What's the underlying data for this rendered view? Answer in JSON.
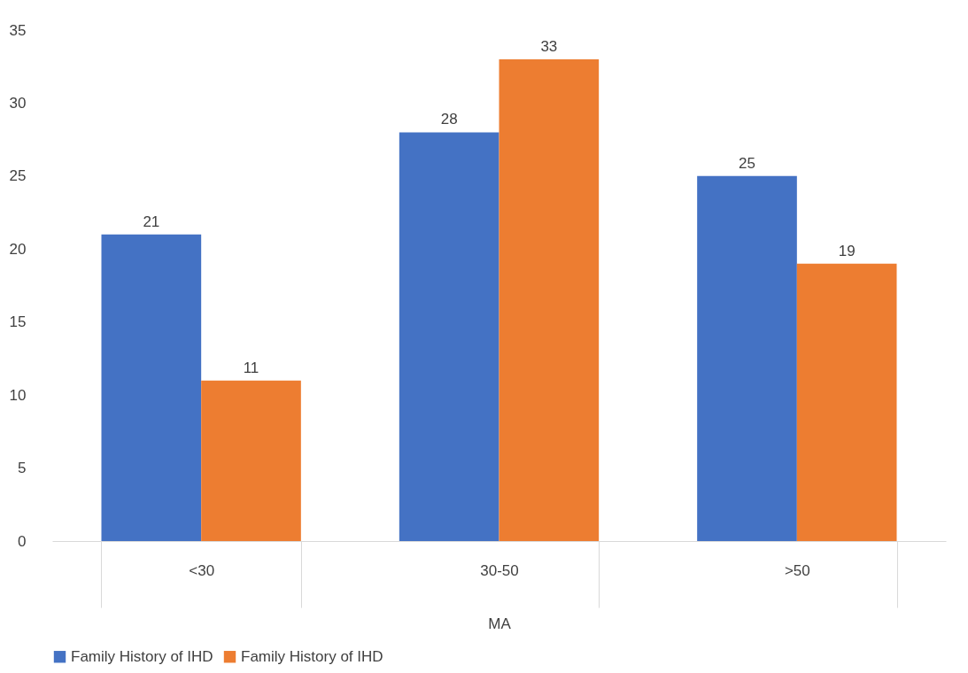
{
  "chart_data": {
    "type": "bar",
    "xlabel": "MA",
    "categories": [
      "<30",
      "30-50",
      ">50"
    ],
    "series": [
      {
        "name": "Family History of IHD",
        "color": "#4472c4",
        "values": [
          21,
          28,
          25
        ]
      },
      {
        "name": "Family History of IHD",
        "color": "#ed7d31",
        "values": [
          11,
          33,
          19
        ]
      }
    ],
    "ylim": [
      0,
      35
    ],
    "yticks": [
      0,
      5,
      10,
      15,
      20,
      25,
      30,
      35
    ],
    "grid": false,
    "legend": "bottom",
    "data_labels": true
  }
}
